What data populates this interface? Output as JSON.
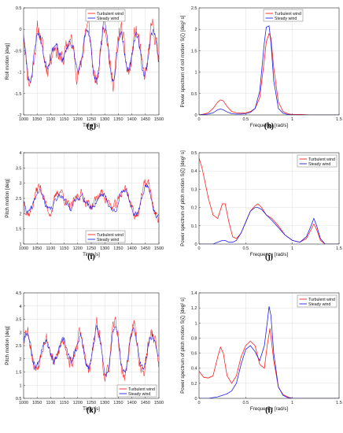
{
  "chart_data": [
    {
      "id": "g",
      "caption": "(g)",
      "type": "line",
      "xlabel": "Time [s]",
      "ylabel": "Roll motion [deg]",
      "xlim": [
        1000,
        1500
      ],
      "ylim": [
        -2,
        0.5
      ],
      "xticks": [
        1000,
        1050,
        1100,
        1150,
        1200,
        1250,
        1300,
        1350,
        1400,
        1450,
        1500
      ],
      "yticks": [
        -2,
        -1.5,
        -1,
        -0.5,
        0,
        0.5
      ],
      "grid": true,
      "legend": "top-center",
      "series": [
        {
          "name": "Turbulent wind",
          "color": "#ff2020",
          "kind": "osc",
          "params": {
            "mean": -0.55,
            "amp": 0.5,
            "f1": 0.128,
            "f2": 0.041,
            "noise": 0.28,
            "seed": 11
          }
        },
        {
          "name": "Steady wind",
          "color": "#2020ee",
          "kind": "osc",
          "params": {
            "mean": -0.55,
            "amp": 0.45,
            "f1": 0.128,
            "f2": 0.041,
            "noise": 0.12,
            "seed": 23
          }
        }
      ]
    },
    {
      "id": "h",
      "caption": "(h)",
      "type": "line",
      "xlabel": "Frequency [rad/s]",
      "ylabel": "Power spectrum of roll motion S(ζ) [deg² s]",
      "xlim": [
        0,
        1.5
      ],
      "ylim": [
        0,
        2.5
      ],
      "xticks": [
        0,
        0.5,
        1,
        1.5
      ],
      "yticks": [
        0,
        0.5,
        1,
        1.5,
        2,
        2.5
      ],
      "grid": true,
      "legend": "top-center",
      "series": [
        {
          "name": "Turbulent wind",
          "color": "#ff2020",
          "x": [
            0,
            0.05,
            0.1,
            0.15,
            0.2,
            0.23,
            0.26,
            0.3,
            0.35,
            0.4,
            0.45,
            0.5,
            0.55,
            0.6,
            0.65,
            0.7,
            0.72,
            0.75,
            0.77,
            0.8,
            0.85,
            0.9,
            0.95,
            1.0,
            1.1,
            1.2,
            1.3,
            1.4,
            1.5
          ],
          "y": [
            0.0,
            0.02,
            0.05,
            0.15,
            0.3,
            0.35,
            0.33,
            0.2,
            0.08,
            0.05,
            0.04,
            0.05,
            0.08,
            0.15,
            0.4,
            1.3,
            1.7,
            1.9,
            1.8,
            1.1,
            0.3,
            0.08,
            0.03,
            0.01,
            0.01,
            0.0,
            0.0,
            0.0,
            0.0
          ]
        },
        {
          "name": "Steady wind",
          "color": "#2020ee",
          "x": [
            0,
            0.05,
            0.1,
            0.15,
            0.2,
            0.23,
            0.26,
            0.3,
            0.35,
            0.4,
            0.45,
            0.5,
            0.55,
            0.6,
            0.65,
            0.7,
            0.72,
            0.75,
            0.77,
            0.8,
            0.85,
            0.9,
            0.95,
            1.0,
            1.1,
            1.2,
            1.3,
            1.4,
            1.5
          ],
          "y": [
            0.0,
            0.01,
            0.02,
            0.05,
            0.12,
            0.14,
            0.12,
            0.07,
            0.03,
            0.02,
            0.02,
            0.03,
            0.06,
            0.15,
            0.55,
            1.7,
            2.05,
            2.08,
            1.7,
            0.8,
            0.15,
            0.04,
            0.01,
            0.0,
            0.0,
            0.0,
            0.0,
            0.0,
            0.0
          ]
        }
      ]
    },
    {
      "id": "i",
      "caption": "(i)",
      "type": "line",
      "xlabel": "Time [s]",
      "ylabel": "Pitch motion [deg]",
      "xlim": [
        1000,
        1500
      ],
      "ylim": [
        1,
        4
      ],
      "xticks": [
        1000,
        1050,
        1100,
        1150,
        1200,
        1250,
        1300,
        1350,
        1400,
        1450,
        1500
      ],
      "yticks": [
        1,
        1.5,
        2,
        2.5,
        3,
        3.5,
        4
      ],
      "grid": true,
      "legend": "bottom-center",
      "series": [
        {
          "name": "Turbulent wind",
          "color": "#ff2020",
          "kind": "osc",
          "params": {
            "mean": 2.45,
            "amp": 0.35,
            "f1": 0.098,
            "f2": 0.037,
            "noise": 0.22,
            "seed": 37,
            "slow": 0.2
          }
        },
        {
          "name": "Steady wind",
          "color": "#2020ee",
          "kind": "osc",
          "params": {
            "mean": 2.4,
            "amp": 0.32,
            "f1": 0.098,
            "f2": 0.037,
            "noise": 0.12,
            "seed": 41
          }
        }
      ]
    },
    {
      "id": "j",
      "caption": "(j)",
      "type": "line",
      "xlabel": "Frequency [rad/s]",
      "ylabel": "Power spectrum of pitch motion S(ζ) [deg² s]",
      "xlim": [
        0,
        1.5
      ],
      "ylim": [
        0,
        0.5
      ],
      "xticks": [
        0,
        0.5,
        1,
        1.5
      ],
      "yticks": [
        0,
        0.1,
        0.2,
        0.3,
        0.4,
        0.5
      ],
      "grid": true,
      "legend": "top-right",
      "series": [
        {
          "name": "Turbulent wind",
          "color": "#ff2020",
          "x": [
            0,
            0.03,
            0.06,
            0.1,
            0.15,
            0.2,
            0.25,
            0.28,
            0.32,
            0.36,
            0.4,
            0.45,
            0.5,
            0.55,
            0.6,
            0.63,
            0.67,
            0.72,
            0.78,
            0.85,
            0.92,
            1.0,
            1.08,
            1.15,
            1.2,
            1.23,
            1.26,
            1.3,
            1.35,
            1.4,
            1.5
          ],
          "y": [
            0.47,
            0.42,
            0.35,
            0.25,
            0.16,
            0.14,
            0.22,
            0.22,
            0.12,
            0.04,
            0.03,
            0.06,
            0.12,
            0.18,
            0.21,
            0.22,
            0.2,
            0.16,
            0.14,
            0.1,
            0.05,
            0.02,
            0.01,
            0.03,
            0.08,
            0.11,
            0.08,
            0.02,
            0.0,
            0.0,
            0.0
          ]
        },
        {
          "name": "Steady wind",
          "color": "#2020ee",
          "x": [
            0,
            0.05,
            0.1,
            0.15,
            0.2,
            0.25,
            0.28,
            0.32,
            0.36,
            0.4,
            0.45,
            0.5,
            0.55,
            0.6,
            0.63,
            0.67,
            0.72,
            0.78,
            0.85,
            0.92,
            1.0,
            1.08,
            1.15,
            1.2,
            1.23,
            1.26,
            1.3,
            1.35,
            1.4,
            1.5
          ],
          "y": [
            0.0,
            0.0,
            0.0,
            0.0,
            0.01,
            0.02,
            0.02,
            0.01,
            0.01,
            0.02,
            0.06,
            0.12,
            0.18,
            0.2,
            0.2,
            0.19,
            0.16,
            0.13,
            0.09,
            0.05,
            0.02,
            0.01,
            0.04,
            0.1,
            0.14,
            0.1,
            0.03,
            0.0,
            0.0,
            0.0
          ]
        }
      ]
    },
    {
      "id": "k",
      "caption": "(k)",
      "type": "line",
      "xlabel": "Time [s]",
      "ylabel": "Pitch motion [deg]",
      "xlim": [
        1000,
        1500
      ],
      "ylim": [
        0.5,
        4.5
      ],
      "xticks": [
        1000,
        1050,
        1100,
        1150,
        1200,
        1250,
        1300,
        1350,
        1400,
        1450,
        1500
      ],
      "yticks": [
        0.5,
        1,
        1.5,
        2,
        2.5,
        3,
        3.5,
        4,
        4.5
      ],
      "grid": true,
      "legend": "bottom-right",
      "series": [
        {
          "name": "Turbulent wind",
          "color": "#ff2020",
          "kind": "osc",
          "params": {
            "mean": 2.3,
            "amp": 0.75,
            "f1": 0.118,
            "f2": 0.043,
            "noise": 0.35,
            "seed": 53
          }
        },
        {
          "name": "Steady wind",
          "color": "#2020ee",
          "kind": "osc",
          "params": {
            "mean": 2.3,
            "amp": 0.65,
            "f1": 0.118,
            "f2": 0.043,
            "noise": 0.18,
            "seed": 67
          }
        }
      ]
    },
    {
      "id": "l",
      "caption": "(l)",
      "type": "line",
      "xlabel": "Frequency [rad/s]",
      "ylabel": "Power spectrum of pitch motion S(ζ) [deg² s]",
      "xlim": [
        0,
        1.5
      ],
      "ylim": [
        0,
        1.4
      ],
      "xticks": [
        0,
        0.5,
        1,
        1.5
      ],
      "yticks": [
        0,
        0.2,
        0.4,
        0.6,
        0.8,
        1,
        1.2,
        1.4
      ],
      "grid": true,
      "legend": "top-right",
      "series": [
        {
          "name": "Turbulent wind",
          "color": "#ff2020",
          "x": [
            0,
            0.05,
            0.1,
            0.15,
            0.2,
            0.23,
            0.26,
            0.3,
            0.35,
            0.4,
            0.45,
            0.5,
            0.55,
            0.6,
            0.65,
            0.7,
            0.73,
            0.76,
            0.8,
            0.85,
            0.9,
            0.95,
            1.0,
            1.1,
            1.2,
            1.3,
            1.4,
            1.5
          ],
          "y": [
            0.36,
            0.28,
            0.27,
            0.3,
            0.55,
            0.68,
            0.6,
            0.3,
            0.2,
            0.3,
            0.55,
            0.7,
            0.76,
            0.7,
            0.45,
            0.4,
            0.7,
            0.93,
            0.5,
            0.15,
            0.05,
            0.02,
            0.0,
            0.0,
            0.0,
            0.0,
            0.0,
            0.0
          ]
        },
        {
          "name": "Steady wind",
          "color": "#2020ee",
          "x": [
            0,
            0.05,
            0.1,
            0.15,
            0.2,
            0.25,
            0.3,
            0.35,
            0.4,
            0.45,
            0.5,
            0.55,
            0.6,
            0.65,
            0.7,
            0.73,
            0.75,
            0.77,
            0.8,
            0.85,
            0.9,
            0.95,
            1.0,
            1.1,
            1.2,
            1.3,
            1.4,
            1.5
          ],
          "y": [
            0.0,
            0.0,
            0.0,
            0.01,
            0.02,
            0.04,
            0.06,
            0.1,
            0.2,
            0.45,
            0.65,
            0.7,
            0.62,
            0.5,
            0.7,
            1.0,
            1.22,
            1.1,
            0.6,
            0.15,
            0.04,
            0.01,
            0.0,
            0.0,
            0.0,
            0.0,
            0.0,
            0.0
          ]
        }
      ]
    }
  ]
}
